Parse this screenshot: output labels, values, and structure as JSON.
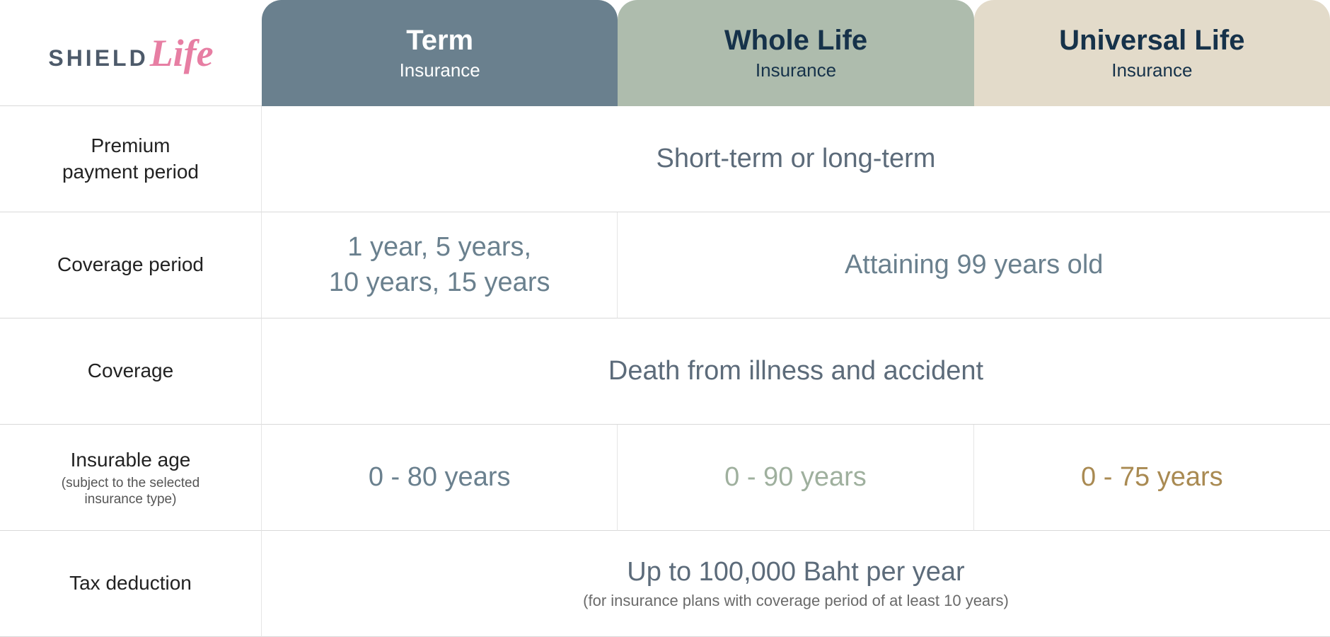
{
  "logo": {
    "part1": "SHIELD",
    "part2": "Life"
  },
  "tabs": [
    {
      "title": "Term",
      "sub": "Insurance",
      "bg": "#6a808e",
      "textLight": true
    },
    {
      "title": "Whole Life",
      "sub": "Insurance",
      "bg": "#aebcad",
      "textLight": false
    },
    {
      "title": "Universal Life",
      "sub": "Insurance",
      "bg": "#e3dbca",
      "textLight": false
    }
  ],
  "rows": {
    "premium": {
      "label": "Premium\npayment period",
      "value": "Short-term or long-term"
    },
    "coverage_period": {
      "label": "Coverage period",
      "term_value": "1 year, 5 years,\n10 years, 15 years",
      "other_value": "Attaining 99 years old"
    },
    "coverage": {
      "label": "Coverage",
      "value": "Death from illness and accident"
    },
    "insurable_age": {
      "label": "Insurable age",
      "label_sub": "(subject to the selected\ninsurance type)",
      "values": [
        {
          "text": "0 - 80 years",
          "color": "#6a808e"
        },
        {
          "text": "0 - 90 years",
          "color": "#9fb09e"
        },
        {
          "text": "0 - 75 years",
          "color": "#a98a52"
        }
      ]
    },
    "tax": {
      "label": "Tax deduction",
      "value": "Up to 100,000 Baht per year",
      "value_sub": "(for insurance plans with coverage period of at least 10 years)"
    }
  },
  "colors": {
    "body_text": "#5c6b7a"
  }
}
